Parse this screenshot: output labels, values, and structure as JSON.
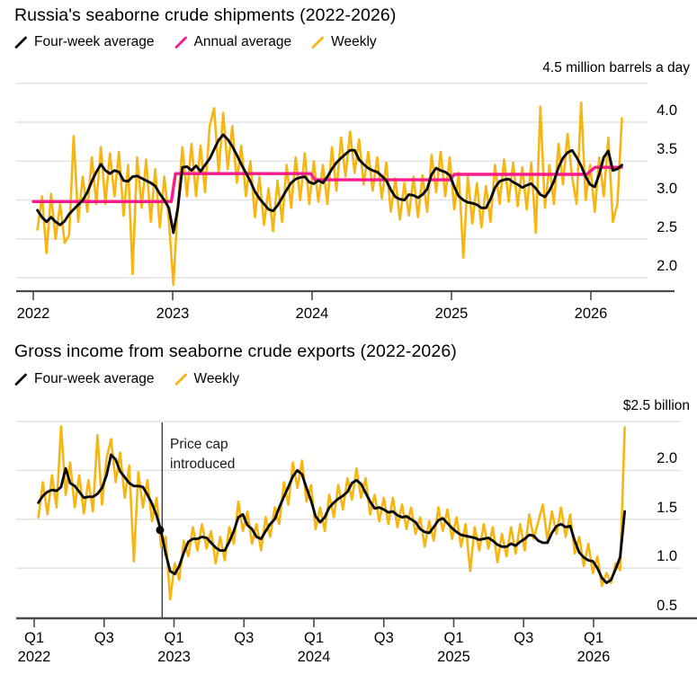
{
  "charts": [
    {
      "title": "Russia's seaborne crude shipments (2022-2026)",
      "axis_note": "4.5 million barrels a day",
      "legend": [
        {
          "label": "Four-week average",
          "color": "#0b0b0b"
        },
        {
          "label": "Annual average",
          "color": "#fa1a8c"
        },
        {
          "label": "Weekly",
          "color": "#f7b512"
        }
      ],
      "chart_data": {
        "type": "line",
        "unit": "million barrels a day",
        "ylim": [
          1.85,
          4.5
        ],
        "grid_values": [
          4.5,
          4.0,
          3.5,
          3.0,
          2.5,
          2.0
        ],
        "y_ticks": [
          {
            "v": 4.0,
            "label": "4.0"
          },
          {
            "v": 3.5,
            "label": "3.5"
          },
          {
            "v": 3.0,
            "label": "3.0"
          },
          {
            "v": 2.5,
            "label": "2.5"
          },
          {
            "v": 2.0,
            "label": "2.0"
          }
        ],
        "x_ticks": [
          {
            "t": 2022,
            "label": "2022"
          },
          {
            "t": 2023,
            "label": "2023"
          },
          {
            "t": 2024,
            "label": "2024"
          },
          {
            "t": 2025,
            "label": "2025"
          },
          {
            "t": 2026,
            "label": "2026"
          }
        ],
        "series": [
          {
            "name": "Weekly",
            "color": "#f7b512",
            "width": 2.6,
            "t0": 2022.03,
            "dt": 0.0325,
            "values": [
              2.62,
              3.05,
              2.32,
              3.08,
              2.5,
              2.95,
              2.45,
              2.55,
              3.82,
              2.72,
              3.3,
              2.85,
              3.55,
              2.95,
              3.68,
              2.95,
              3.6,
              3.05,
              3.62,
              2.8,
              3.45,
              2.05,
              3.55,
              2.9,
              3.52,
              2.72,
              3.4,
              2.65,
              3.3,
              2.75,
              1.91,
              2.95,
              3.68,
              3.05,
              3.72,
              3.05,
              3.7,
              3.1,
              3.95,
              4.18,
              3.35,
              4.12,
              3.4,
              3.95,
              3.22,
              3.7,
              3.05,
              3.5,
              2.78,
              3.3,
              2.68,
              3.15,
              2.6,
              3.25,
              2.72,
              3.45,
              2.9,
              3.55,
              3.0,
              3.6,
              2.95,
              3.5,
              2.98,
              3.45,
              2.95,
              3.68,
              3.12,
              3.8,
              3.3,
              3.88,
              3.35,
              3.78,
              3.2,
              3.62,
              3.12,
              3.55,
              3.02,
              3.48,
              2.85,
              3.28,
              2.75,
              3.22,
              2.8,
              3.3,
              2.78,
              3.32,
              2.85,
              3.58,
              3.1,
              3.62,
              3.05,
              3.55,
              2.88,
              3.35,
              2.26,
              3.3,
              2.7,
              3.22,
              2.65,
              3.18,
              2.72,
              3.45,
              2.95,
              3.52,
              2.98,
              3.48,
              2.92,
              3.42,
              2.88,
              3.48,
              2.58,
              4.2,
              2.9,
              3.45,
              2.95,
              3.72,
              3.2,
              3.85,
              3.3,
              2.95,
              4.25,
              3.0,
              3.45,
              2.85,
              3.55,
              3.05,
              3.8,
              2.72,
              2.95,
              4.05
            ]
          },
          {
            "name": "Annual average",
            "color": "#fa1a8c",
            "width": 3.4,
            "points": [
              [
                2022.0,
                2.98
              ],
              [
                2022.99,
                2.98
              ],
              [
                2023.02,
                3.34
              ],
              [
                2023.99,
                3.34
              ],
              [
                2024.02,
                3.26
              ],
              [
                2024.99,
                3.26
              ],
              [
                2025.02,
                3.33
              ],
              [
                2025.97,
                3.33
              ],
              [
                2026.03,
                3.42
              ],
              [
                2026.22,
                3.42
              ]
            ]
          },
          {
            "name": "Four-week average",
            "color": "#0b0b0b",
            "width": 2.9,
            "t0": 2022.03,
            "dt": 0.0325,
            "values": [
              2.87,
              2.78,
              2.72,
              2.78,
              2.72,
              2.68,
              2.73,
              2.82,
              2.88,
              2.94,
              3.0,
              3.1,
              3.24,
              3.36,
              3.46,
              3.38,
              3.34,
              3.38,
              3.36,
              3.25,
              3.24,
              3.3,
              3.31,
              3.28,
              3.25,
              3.22,
              3.18,
              3.08,
              3.0,
              2.9,
              2.58,
              2.9,
              3.42,
              3.43,
              3.38,
              3.44,
              3.37,
              3.45,
              3.53,
              3.65,
              3.77,
              3.84,
              3.78,
              3.69,
              3.58,
              3.46,
              3.35,
              3.24,
              3.11,
              3.02,
              2.95,
              2.88,
              2.86,
              2.93,
              3.03,
              3.13,
              3.22,
              3.27,
              3.29,
              3.3,
              3.23,
              3.21,
              3.25,
              3.22,
              3.3,
              3.4,
              3.48,
              3.54,
              3.59,
              3.64,
              3.64,
              3.52,
              3.46,
              3.41,
              3.38,
              3.36,
              3.31,
              3.25,
              3.13,
              3.04,
              3.01,
              3.0,
              3.07,
              3.06,
              3.03,
              3.07,
              3.14,
              3.33,
              3.41,
              3.38,
              3.36,
              3.32,
              3.17,
              3.05,
              3.0,
              2.97,
              2.96,
              2.94,
              2.9,
              2.9,
              3.01,
              3.16,
              3.24,
              3.26,
              3.27,
              3.23,
              3.2,
              3.16,
              3.19,
              3.21,
              3.15,
              3.07,
              3.04,
              3.12,
              3.24,
              3.42,
              3.54,
              3.61,
              3.64,
              3.55,
              3.44,
              3.3,
              3.2,
              3.17,
              3.33,
              3.55,
              3.63,
              3.38,
              3.4,
              3.45
            ]
          }
        ]
      }
    },
    {
      "title": "Gross income from seaborne crude exports (2022-2026)",
      "axis_note": "$2.5 billion",
      "legend": [
        {
          "label": "Four-week average",
          "color": "#0b0b0b"
        },
        {
          "label": "Weekly",
          "color": "#f7b512"
        }
      ],
      "chart_data": {
        "type": "line",
        "unit": "$ billion",
        "ylim": [
          0.5,
          2.52
        ],
        "grid_values": [
          2.5,
          2.0,
          1.5,
          1.0
        ],
        "y_ticks": [
          {
            "v": 2.0,
            "label": "2.0"
          },
          {
            "v": 1.5,
            "label": "1.5"
          },
          {
            "v": 1.0,
            "label": "1.0"
          },
          {
            "v": 0.5,
            "label": "0.5"
          }
        ],
        "x_ticks": [
          {
            "t": 2022.0,
            "label": "Q1",
            "year": "2022"
          },
          {
            "t": 2022.5,
            "label": "Q3",
            "year": ""
          },
          {
            "t": 2023.0,
            "label": "Q1",
            "year": "2023"
          },
          {
            "t": 2023.5,
            "label": "Q3",
            "year": ""
          },
          {
            "t": 2024.0,
            "label": "Q1",
            "year": "2024"
          },
          {
            "t": 2024.5,
            "label": "Q3",
            "year": ""
          },
          {
            "t": 2025.0,
            "label": "Q1",
            "year": "2025"
          },
          {
            "t": 2025.5,
            "label": "Q3",
            "year": ""
          },
          {
            "t": 2026.0,
            "label": "Q1",
            "year": "2026"
          }
        ],
        "annotation": {
          "lines": [
            "Price cap",
            "introduced"
          ],
          "line_t": 2022.915,
          "dot": {
            "t": 2022.9,
            "v": 1.39
          }
        },
        "series": [
          {
            "name": "Weekly",
            "color": "#f7b512",
            "width": 2.6,
            "t0": 2022.03,
            "dt": 0.0325,
            "values": [
              1.52,
              1.88,
              1.55,
              1.95,
              1.62,
              2.45,
              1.75,
              2.08,
              1.62,
              1.95,
              1.56,
              1.9,
              1.58,
              2.36,
              1.65,
              2.12,
              2.32,
              1.88,
              2.18,
              1.72,
              2.05,
              1.07,
              1.98,
              1.62,
              1.9,
              1.48,
              1.72,
              1.22,
              1.32,
              0.68,
              1.05,
              0.88,
              1.28,
              1.12,
              1.42,
              1.18,
              1.45,
              1.2,
              1.38,
              1.05,
              1.32,
              1.08,
              1.42,
              1.25,
              1.68,
              1.38,
              1.58,
              1.25,
              1.45,
              1.18,
              1.52,
              1.32,
              1.62,
              1.45,
              1.88,
              1.65,
              2.08,
              1.82,
              2.1,
              1.68,
              1.85,
              1.4,
              1.62,
              1.38,
              1.75,
              1.52,
              1.85,
              1.6,
              1.92,
              1.7,
              2.02,
              1.72,
              1.92,
              1.55,
              1.75,
              1.48,
              1.72,
              1.45,
              1.72,
              1.42,
              1.65,
              1.4,
              1.62,
              1.35,
              1.52,
              1.22,
              1.48,
              1.28,
              1.62,
              1.38,
              1.6,
              1.3,
              1.52,
              1.22,
              1.45,
              0.97,
              1.42,
              1.18,
              1.45,
              1.2,
              1.42,
              1.06,
              1.35,
              1.12,
              1.42,
              1.15,
              1.45,
              1.18,
              1.55,
              1.3,
              1.48,
              1.65,
              1.28,
              1.58,
              1.35,
              1.62,
              1.32,
              1.55,
              1.15,
              1.32,
              1.02,
              1.25,
              0.95,
              1.12,
              0.82,
              0.95,
              0.85,
              1.05,
              0.98,
              2.44
            ]
          },
          {
            "name": "Four-week average",
            "color": "#0b0b0b",
            "width": 2.9,
            "t0": 2022.03,
            "dt": 0.0325,
            "values": [
              1.67,
              1.74,
              1.78,
              1.8,
              1.79,
              1.83,
              2.02,
              1.87,
              1.84,
              1.78,
              1.72,
              1.73,
              1.73,
              1.76,
              1.82,
              1.95,
              2.16,
              2.11,
              1.99,
              1.93,
              1.87,
              1.84,
              1.84,
              1.83,
              1.75,
              1.66,
              1.54,
              1.38,
              1.15,
              0.97,
              0.94,
              1.02,
              1.16,
              1.27,
              1.3,
              1.3,
              1.32,
              1.31,
              1.26,
              1.21,
              1.18,
              1.18,
              1.27,
              1.38,
              1.52,
              1.55,
              1.44,
              1.4,
              1.32,
              1.3,
              1.38,
              1.45,
              1.5,
              1.62,
              1.73,
              1.83,
              1.94,
              2.0,
              1.96,
              1.82,
              1.69,
              1.53,
              1.47,
              1.52,
              1.62,
              1.67,
              1.71,
              1.74,
              1.78,
              1.87,
              1.9,
              1.86,
              1.77,
              1.68,
              1.61,
              1.62,
              1.6,
              1.57,
              1.58,
              1.54,
              1.52,
              1.53,
              1.5,
              1.47,
              1.4,
              1.37,
              1.36,
              1.42,
              1.49,
              1.51,
              1.46,
              1.41,
              1.37,
              1.34,
              1.33,
              1.32,
              1.31,
              1.29,
              1.3,
              1.31,
              1.28,
              1.24,
              1.22,
              1.22,
              1.25,
              1.23,
              1.27,
              1.3,
              1.34,
              1.33,
              1.28,
              1.26,
              1.26,
              1.36,
              1.43,
              1.45,
              1.42,
              1.43,
              1.28,
              1.16,
              1.11,
              1.08,
              1.07,
              1.0,
              0.9,
              0.85,
              0.88,
              0.99,
              1.11,
              1.58
            ]
          }
        ]
      }
    }
  ],
  "style": {
    "grid_color": "#e4e4e4",
    "axis_color": "#4a4a4a",
    "annotation_line_color": "#222222"
  }
}
